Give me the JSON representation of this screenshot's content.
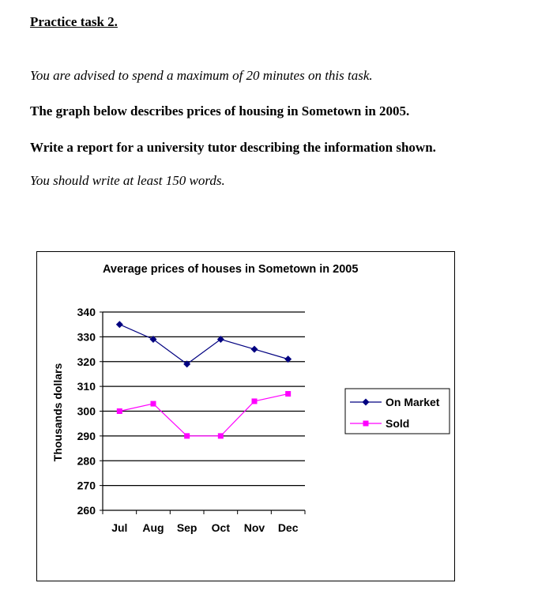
{
  "task": {
    "heading": "Practice task 2.",
    "advice": "You are advised to spend a maximum of 20 minutes on this task.",
    "description": "The graph below describes prices of housing in Sometown in 2005.",
    "instruction": "Write a report for a university tutor describing the information shown.",
    "word_count": "You should write at least 150 words."
  },
  "chart_data": {
    "type": "line",
    "title": "Average prices of houses in Sometown in 2005",
    "xlabel": "",
    "ylabel": "Thousands dollars",
    "categories": [
      "Jul",
      "Aug",
      "Sep",
      "Oct",
      "Nov",
      "Dec"
    ],
    "ylim": [
      260,
      340
    ],
    "yticks": [
      260,
      270,
      280,
      290,
      300,
      310,
      320,
      330,
      340
    ],
    "grid": true,
    "legend_position": "right",
    "series": [
      {
        "name": "On Market",
        "values": [
          335,
          329,
          319,
          329,
          325,
          321
        ],
        "color": "#000080",
        "marker": "diamond"
      },
      {
        "name": "Sold",
        "values": [
          300,
          303,
          290,
          290,
          304,
          307
        ],
        "color": "#ff00ff",
        "marker": "square"
      }
    ]
  }
}
